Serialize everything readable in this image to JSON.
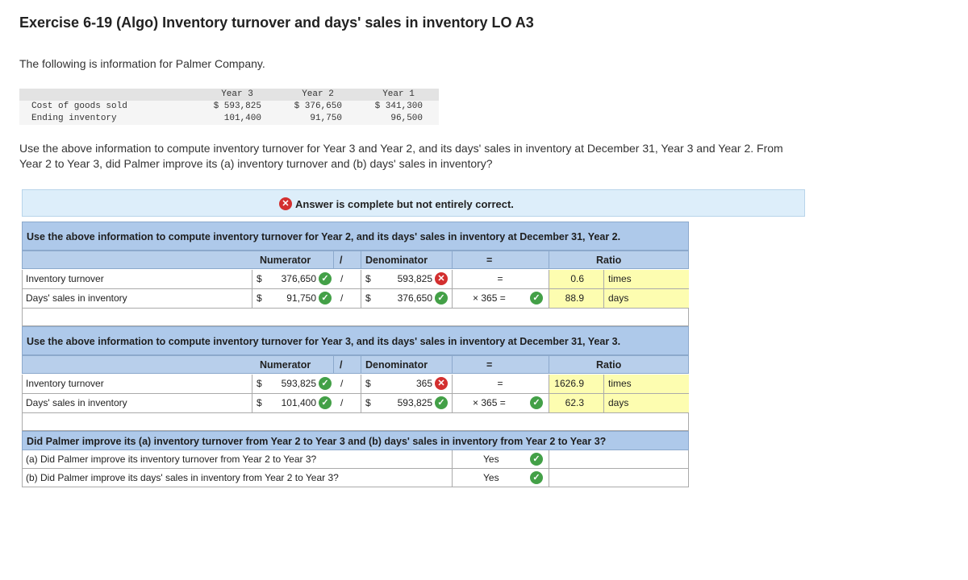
{
  "title": "Exercise 6-19 (Algo) Inventory turnover and days' sales in inventory LO A3",
  "intro": "The following is information for Palmer Company.",
  "info_table": {
    "headers": [
      "Year 3",
      "Year 2",
      "Year 1"
    ],
    "rows": [
      {
        "label": "Cost of goods sold",
        "values": [
          "$ 593,825",
          "$ 376,650",
          "$ 341,300"
        ]
      },
      {
        "label": "Ending inventory",
        "values": [
          "101,400",
          "91,750",
          "96,500"
        ]
      }
    ]
  },
  "question": "Use the above information to compute inventory turnover for Year 3 and Year 2, and its days' sales in inventory at December 31, Year 3 and Year 2. From Year 2 to Year 3, did Palmer improve its (a) inventory turnover and (b) days' sales in inventory?",
  "banner": {
    "icon": "x-circle-icon",
    "text": "Answer is complete but not entirely correct."
  },
  "colors": {
    "correct": "#43a047",
    "incorrect": "#d32f2f",
    "header_blue": "#aec9ea",
    "answer_yellow": "#fdfdb0"
  },
  "section_year2": {
    "heading": "Use the above information to compute inventory turnover for Year 2, and its days' sales in inventory at December 31, Year 2.",
    "col_numerator": "Numerator",
    "col_slash": "/",
    "col_denominator": "Denominator",
    "col_equals": "=",
    "col_ratio": "Ratio",
    "rows": [
      {
        "label": "Inventory turnover",
        "num_sign": "$",
        "numerator": "376,650",
        "num_status": "correct",
        "slash": "/",
        "den_sign": "$",
        "denominator": "593,825",
        "den_status": "incorrect",
        "multiplier": "=",
        "ratio": "0.6",
        "unit": "times"
      },
      {
        "label": "Days' sales in inventory",
        "num_sign": "$",
        "numerator": "91,750",
        "num_status": "correct",
        "slash": "/",
        "den_sign": "$",
        "denominator": "376,650",
        "den_status": "correct",
        "multiplier": "× 365 =",
        "mult_status": "correct",
        "ratio": "88.9",
        "unit": "days"
      }
    ]
  },
  "section_year3": {
    "heading": "Use the above information to compute inventory turnover for Year 3, and its days' sales in inventory at December 31, Year 3.",
    "col_numerator": "Numerator",
    "col_slash": "/",
    "col_denominator": "Denominator",
    "col_equals": "=",
    "col_ratio": "Ratio",
    "rows": [
      {
        "label": "Inventory turnover",
        "num_sign": "$",
        "numerator": "593,825",
        "num_status": "correct",
        "slash": "/",
        "den_sign": "$",
        "denominator": "365",
        "den_status": "incorrect",
        "multiplier": "=",
        "ratio": "1626.9",
        "unit": "times"
      },
      {
        "label": "Days' sales in inventory",
        "num_sign": "$",
        "numerator": "101,400",
        "num_status": "correct",
        "slash": "/",
        "den_sign": "$",
        "denominator": "593,825",
        "den_status": "correct",
        "multiplier": "× 365 =",
        "mult_status": "correct",
        "ratio": "62.3",
        "unit": "days"
      }
    ]
  },
  "section_improve": {
    "heading": "Did Palmer improve its (a) inventory turnover from Year 2 to Year 3 and (b) days' sales in inventory from Year 2 to Year 3?",
    "rows": [
      {
        "question": "(a) Did Palmer improve its inventory turnover from Year 2 to Year 3?",
        "answer": "Yes",
        "status": "correct"
      },
      {
        "question": "(b) Did Palmer improve its days' sales in inventory from Year 2 to Year 3?",
        "answer": "Yes",
        "status": "correct"
      }
    ]
  }
}
